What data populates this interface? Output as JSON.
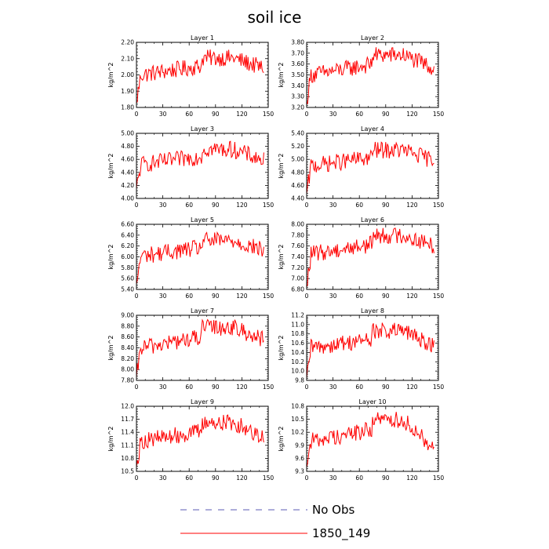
{
  "figure": {
    "title": "soil ice",
    "legend": [
      {
        "label": "No Obs",
        "color": "#5b5bb5",
        "dash": true
      },
      {
        "label": "1850_149",
        "color": "#ff0000",
        "dash": false
      }
    ]
  },
  "chart_data": [
    {
      "type": "line",
      "title": "Layer 1",
      "ylabel": "kg/m^2",
      "xlim": [
        0,
        150
      ],
      "xticks": [
        0,
        30,
        60,
        90,
        120,
        150
      ],
      "ylim": [
        1.8,
        2.2
      ],
      "yticks": [
        "1.80",
        "1.90",
        "2.00",
        "2.10",
        "2.20"
      ],
      "series": [
        {
          "color": "#ff0000",
          "y_start": 1.83,
          "y_mid_early": 2.0,
          "y_peak_near_x82": 2.16,
          "y_end": 2.04
        }
      ]
    },
    {
      "type": "line",
      "title": "Layer 2",
      "ylabel": "kg/m^2",
      "xlim": [
        0,
        150
      ],
      "xticks": [
        0,
        30,
        60,
        90,
        120,
        150
      ],
      "ylim": [
        3.2,
        3.8
      ],
      "yticks": [
        "3.20",
        "3.30",
        "3.40",
        "3.50",
        "3.60",
        "3.70",
        "3.80"
      ],
      "series": [
        {
          "color": "#ff0000",
          "y_start": 3.26,
          "y_mid_early": 3.5,
          "y_peak_near_x85": 3.78,
          "y_end": 3.56
        }
      ]
    },
    {
      "type": "line",
      "title": "Layer 3",
      "ylabel": "kg/m^2",
      "xlim": [
        0,
        150
      ],
      "xticks": [
        0,
        30,
        60,
        90,
        120,
        150
      ],
      "ylim": [
        4.0,
        5.0
      ],
      "yticks": [
        "4.00",
        "4.20",
        "4.40",
        "4.60",
        "4.80",
        "5.00"
      ],
      "series": [
        {
          "color": "#ff0000",
          "y_start": 4.15,
          "y_mid_early": 4.52,
          "y_peak_near_x85": 4.88,
          "y_end": 4.58
        }
      ]
    },
    {
      "type": "line",
      "title": "Layer 4",
      "ylabel": "kg/m^2",
      "xlim": [
        0,
        150
      ],
      "xticks": [
        0,
        30,
        60,
        90,
        120,
        150
      ],
      "ylim": [
        4.4,
        5.4
      ],
      "yticks": [
        "4.40",
        "4.60",
        "4.80",
        "5.00",
        "5.20",
        "5.40"
      ],
      "series": [
        {
          "color": "#ff0000",
          "y_start": 4.47,
          "y_mid_early": 4.9,
          "y_peak_near_x85": 5.27,
          "y_end": 4.98
        }
      ]
    },
    {
      "type": "line",
      "title": "Layer 5",
      "ylabel": "kg/m^2",
      "xlim": [
        0,
        150
      ],
      "xticks": [
        0,
        30,
        60,
        90,
        120,
        150
      ],
      "ylim": [
        5.4,
        6.6
      ],
      "yticks": [
        "5.40",
        "5.60",
        "5.80",
        "6.00",
        "6.20",
        "6.40",
        "6.60"
      ],
      "series": [
        {
          "color": "#ff0000",
          "y_start": 5.5,
          "y_mid_early": 6.02,
          "y_peak_near_x85": 6.45,
          "y_end": 6.12
        }
      ]
    },
    {
      "type": "line",
      "title": "Layer 6",
      "ylabel": "kg/m^2",
      "xlim": [
        0,
        150
      ],
      "xticks": [
        0,
        30,
        60,
        90,
        120,
        150
      ],
      "ylim": [
        6.8,
        8.0
      ],
      "yticks": [
        "6.80",
        "7.00",
        "7.20",
        "7.40",
        "7.60",
        "7.80",
        "8.00"
      ],
      "series": [
        {
          "color": "#ff0000",
          "y_start": 6.85,
          "y_mid_early": 7.45,
          "y_peak_near_x85": 7.98,
          "y_end": 7.6
        }
      ]
    },
    {
      "type": "line",
      "title": "Layer 7",
      "ylabel": "kg/m^2",
      "xlim": [
        0,
        150
      ],
      "xticks": [
        0,
        30,
        60,
        90,
        120,
        150
      ],
      "ylim": [
        7.8,
        9.0
      ],
      "yticks": [
        "7.80",
        "8.00",
        "8.20",
        "8.40",
        "8.60",
        "8.80",
        "9.00"
      ],
      "series": [
        {
          "color": "#ff0000",
          "y_start": 7.85,
          "y_mid_early": 8.4,
          "y_peak_near_x85": 8.98,
          "y_end": 8.55
        }
      ]
    },
    {
      "type": "line",
      "title": "Layer 8",
      "ylabel": "kg/m^2",
      "xlim": [
        0,
        150
      ],
      "xticks": [
        0,
        30,
        60,
        90,
        120,
        150
      ],
      "ylim": [
        9.8,
        11.2
      ],
      "yticks": [
        "9.8",
        "10.0",
        "10.2",
        "10.4",
        "10.6",
        "10.8",
        "11.0",
        "11.2"
      ],
      "series": [
        {
          "color": "#ff0000",
          "y_start": 9.85,
          "y_mid_early": 10.5,
          "y_peak_near_x85": 11.05,
          "y_end": 10.55
        }
      ]
    },
    {
      "type": "line",
      "title": "Layer 9",
      "ylabel": "kg/m^2",
      "xlim": [
        0,
        150
      ],
      "xticks": [
        0,
        30,
        60,
        90,
        120,
        150
      ],
      "ylim": [
        10.5,
        12.0
      ],
      "yticks": [
        "10.5",
        "10.8",
        "11.1",
        "11.4",
        "11.7",
        "12.0"
      ],
      "series": [
        {
          "color": "#ff0000",
          "y_start": 10.6,
          "y_mid_early": 11.2,
          "y_peak_near_x85": 11.85,
          "y_end": 11.3
        }
      ]
    },
    {
      "type": "line",
      "title": "Layer 10",
      "ylabel": "kg/m^2",
      "xlim": [
        0,
        150
      ],
      "xticks": [
        0,
        30,
        60,
        90,
        120,
        150
      ],
      "ylim": [
        9.3,
        10.8
      ],
      "yticks": [
        "9.3",
        "9.6",
        "9.9",
        "10.2",
        "10.5",
        "10.8"
      ],
      "series": [
        {
          "color": "#ff0000",
          "y_start": 9.4,
          "y_mid_early": 10.0,
          "y_peak_near_x85": 10.75,
          "y_end": 9.85
        }
      ]
    }
  ]
}
